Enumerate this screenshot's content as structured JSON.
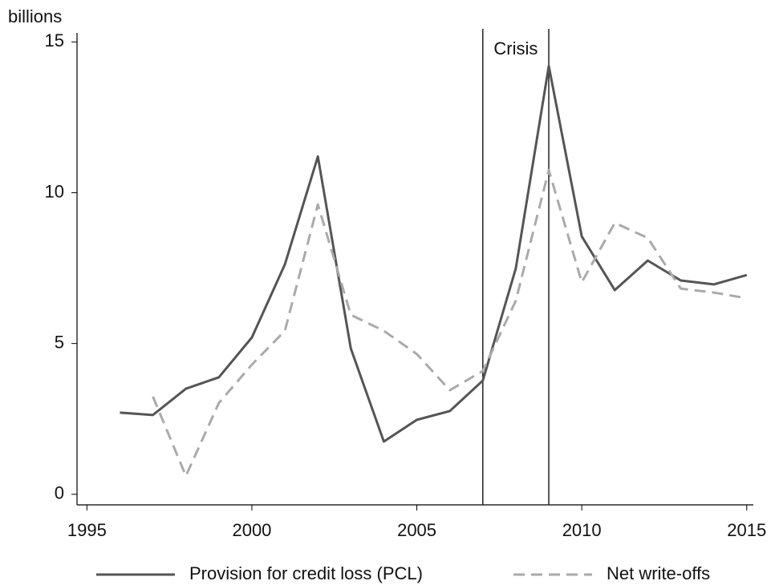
{
  "chart_data": {
    "type": "line",
    "y_label": "billions",
    "x": [
      1996,
      1997,
      1998,
      1999,
      2000,
      2001,
      2002,
      2003,
      2004,
      2005,
      2006,
      2007,
      2008,
      2009,
      2010,
      2011,
      2012,
      2013,
      2014,
      2015
    ],
    "series": [
      {
        "name": "Provision for credit loss (PCL)",
        "color": "#555555",
        "dash": false,
        "values": [
          2.71,
          2.63,
          3.5,
          3.88,
          5.2,
          7.62,
          11.2,
          4.83,
          1.75,
          2.47,
          2.76,
          3.77,
          7.49,
          14.2,
          8.55,
          6.77,
          7.75,
          7.09,
          6.96,
          7.27
        ]
      },
      {
        "name": "Net write-offs",
        "color": "#aaaaaa",
        "dash": true,
        "values": [
          null,
          3.24,
          0.61,
          3.03,
          4.3,
          5.42,
          9.61,
          5.95,
          5.42,
          4.65,
          3.45,
          4.09,
          6.42,
          10.75,
          7.03,
          9.0,
          8.5,
          6.82,
          6.69,
          6.5
        ]
      }
    ],
    "vlines": [
      2007,
      2009
    ],
    "annotation": "Crisis",
    "xlim": [
      1994.7,
      2015.2
    ],
    "xticks": [
      1995,
      2000,
      2005,
      2010,
      2015
    ],
    "ylim": [
      -0.35,
      15.3
    ],
    "yticks": [
      0,
      5,
      10,
      15
    ],
    "grid": false,
    "legend": "bottom"
  }
}
